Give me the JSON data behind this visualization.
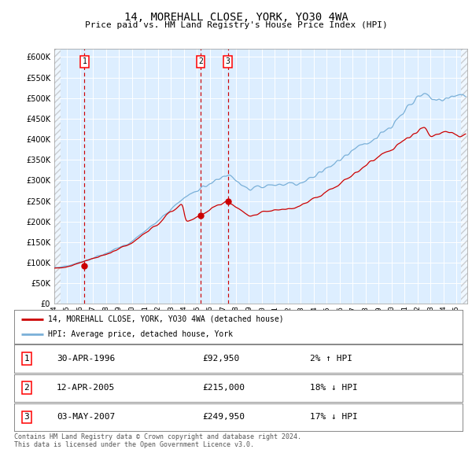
{
  "title": "14, MOREHALL CLOSE, YORK, YO30 4WA",
  "subtitle": "Price paid vs. HM Land Registry's House Price Index (HPI)",
  "ylim": [
    0,
    620000
  ],
  "yticks": [
    0,
    50000,
    100000,
    150000,
    200000,
    250000,
    300000,
    350000,
    400000,
    450000,
    500000,
    550000,
    600000
  ],
  "xlim_start": 1994.0,
  "xlim_end": 2025.83,
  "plot_bg_color": "#ddeeff",
  "hpi_color": "#7ab0d8",
  "price_color": "#cc0000",
  "purchase_dates": [
    1996.33,
    2005.28,
    2007.37
  ],
  "purchase_prices": [
    92950,
    215000,
    249950
  ],
  "transaction_labels": [
    "1",
    "2",
    "3"
  ],
  "legend_entries": [
    "14, MOREHALL CLOSE, YORK, YO30 4WA (detached house)",
    "HPI: Average price, detached house, York"
  ],
  "table_rows": [
    [
      "1",
      "30-APR-1996",
      "£92,950",
      "2% ↑ HPI"
    ],
    [
      "2",
      "12-APR-2005",
      "£215,000",
      "18% ↓ HPI"
    ],
    [
      "3",
      "03-MAY-2007",
      "£249,950",
      "17% ↓ HPI"
    ]
  ],
  "footer": "Contains HM Land Registry data © Crown copyright and database right 2024.\nThis data is licensed under the Open Government Licence v3.0."
}
